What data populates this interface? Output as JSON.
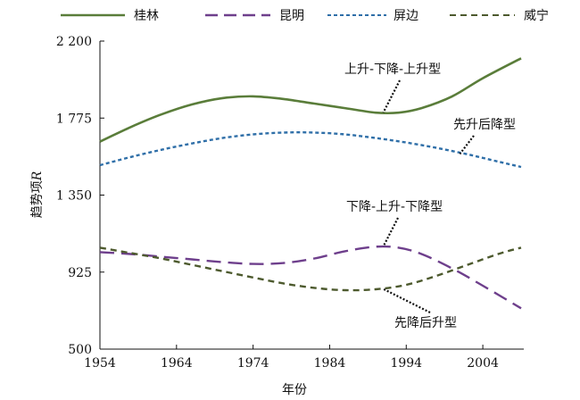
{
  "chart_data": {
    "type": "line",
    "xlabel": "年份",
    "ylabel": "趋势项",
    "ylabel_var": "R",
    "xlim": [
      1954,
      2009
    ],
    "ylim": [
      500,
      2200
    ],
    "xticks": [
      1954,
      1964,
      1974,
      1984,
      1994,
      2004
    ],
    "xtick_labels": [
      "1954",
      "1964",
      "1974",
      "1984",
      "1994",
      "2004"
    ],
    "yticks": [
      500,
      925,
      1350,
      1775,
      2200
    ],
    "ytick_labels": [
      "500",
      "925",
      "1 350",
      "1 775",
      "2 200"
    ],
    "grid": false,
    "legend_position": "top",
    "series": [
      {
        "name": "桂林",
        "color": "#5a7d3a",
        "dash": "solid",
        "x": [
          1954,
          1958,
          1962,
          1966,
          1970,
          1974,
          1978,
          1982,
          1986,
          1990,
          1993,
          1996,
          2000,
          2004,
          2009
        ],
        "y": [
          1645,
          1725,
          1795,
          1850,
          1885,
          1895,
          1880,
          1855,
          1830,
          1805,
          1805,
          1830,
          1895,
          1995,
          2105
        ]
      },
      {
        "name": "昆明",
        "color": "#6e3f8c",
        "dash": "longdash",
        "x": [
          1954,
          1958,
          1962,
          1966,
          1970,
          1974,
          1978,
          1982,
          1986,
          1990,
          1993,
          1996,
          2000,
          2004,
          2009
        ],
        "y": [
          1035,
          1025,
          1010,
          995,
          980,
          970,
          975,
          1000,
          1040,
          1065,
          1060,
          1025,
          945,
          850,
          725
        ]
      },
      {
        "name": "屏边",
        "color": "#2f6fa8",
        "dash": "shortdash",
        "x": [
          1954,
          1958,
          1962,
          1966,
          1970,
          1974,
          1978,
          1982,
          1986,
          1990,
          1994,
          1998,
          2002,
          2006,
          2009
        ],
        "y": [
          1515,
          1560,
          1600,
          1635,
          1665,
          1685,
          1695,
          1695,
          1685,
          1665,
          1640,
          1610,
          1575,
          1535,
          1505
        ]
      },
      {
        "name": "威宁",
        "color": "#4d5a2e",
        "dash": "mediumdash",
        "x": [
          1954,
          1958,
          1962,
          1966,
          1970,
          1974,
          1978,
          1982,
          1986,
          1990,
          1994,
          1998,
          2002,
          2006,
          2009
        ],
        "y": [
          1060,
          1030,
          1000,
          965,
          930,
          895,
          862,
          838,
          825,
          830,
          855,
          905,
          965,
          1025,
          1060
        ]
      }
    ],
    "annotations": [
      {
        "text": "上升-下降-上升型",
        "target": [
          1991,
          1805
        ]
      },
      {
        "text": "先升后降型",
        "target": [
          2001,
          1577
        ]
      },
      {
        "text": "下降-上升-下降型",
        "target": [
          1991,
          1066
        ]
      },
      {
        "text": "先降后升型",
        "target": [
          1991,
          832
        ]
      }
    ]
  }
}
